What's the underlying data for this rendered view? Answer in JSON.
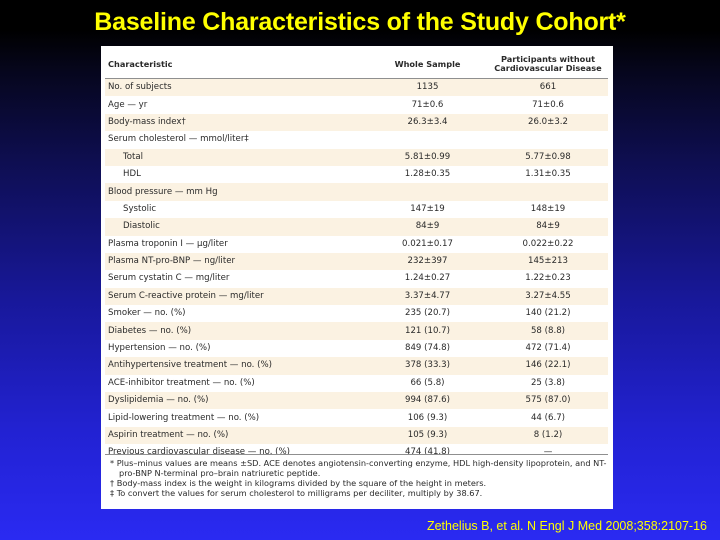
{
  "slide": {
    "title": "Baseline Characteristics of the Study Cohort*",
    "citation": "Zethelius B, et al. N Engl J Med 2008;358:2107-16"
  },
  "table": {
    "headers": [
      "Characteristic",
      "Whole Sample",
      "Participants without Cardiovascular Disease"
    ],
    "rows": [
      {
        "label": "No. of subjects",
        "whole": "1135",
        "without_cvd": "661",
        "indent": false
      },
      {
        "label": "Age — yr",
        "whole": "71±0.6",
        "without_cvd": "71±0.6",
        "indent": false
      },
      {
        "label": "Body-mass index†",
        "whole": "26.3±3.4",
        "without_cvd": "26.0±3.2",
        "indent": false
      },
      {
        "label": "Serum cholesterol — mmol/liter‡",
        "whole": "",
        "without_cvd": "",
        "indent": false
      },
      {
        "label": "Total",
        "whole": "5.81±0.99",
        "without_cvd": "5.77±0.98",
        "indent": true
      },
      {
        "label": "HDL",
        "whole": "1.28±0.35",
        "without_cvd": "1.31±0.35",
        "indent": true
      },
      {
        "label": "Blood pressure — mm Hg",
        "whole": "",
        "without_cvd": "",
        "indent": false
      },
      {
        "label": "Systolic",
        "whole": "147±19",
        "without_cvd": "148±19",
        "indent": true
      },
      {
        "label": "Diastolic",
        "whole": "84±9",
        "without_cvd": "84±9",
        "indent": true
      },
      {
        "label": "Plasma troponin I — µg/liter",
        "whole": "0.021±0.17",
        "without_cvd": "0.022±0.22",
        "indent": false
      },
      {
        "label": "Plasma NT-pro-BNP — ng/liter",
        "whole": "232±397",
        "without_cvd": "145±213",
        "indent": false
      },
      {
        "label": "Serum cystatin C — mg/liter",
        "whole": "1.24±0.27",
        "without_cvd": "1.22±0.23",
        "indent": false
      },
      {
        "label": "Serum C-reactive protein — mg/liter",
        "whole": "3.37±4.77",
        "without_cvd": "3.27±4.55",
        "indent": false
      },
      {
        "label": "Smoker — no. (%)",
        "whole": "235 (20.7)",
        "without_cvd": "140 (21.2)",
        "indent": false
      },
      {
        "label": "Diabetes — no. (%)",
        "whole": "121 (10.7)",
        "without_cvd": "58 (8.8)",
        "indent": false
      },
      {
        "label": "Hypertension — no. (%)",
        "whole": "849 (74.8)",
        "without_cvd": "472 (71.4)",
        "indent": false
      },
      {
        "label": "Antihypertensive treatment — no. (%)",
        "whole": "378 (33.3)",
        "without_cvd": "146 (22.1)",
        "indent": false
      },
      {
        "label": "ACE-inhibitor treatment — no. (%)",
        "whole": "66 (5.8)",
        "without_cvd": "25 (3.8)",
        "indent": false
      },
      {
        "label": "Dyslipidemia — no. (%)",
        "whole": "994 (87.6)",
        "without_cvd": "575 (87.0)",
        "indent": false
      },
      {
        "label": "Lipid-lowering treatment — no. (%)",
        "whole": "106 (9.3)",
        "without_cvd": "44 (6.7)",
        "indent": false
      },
      {
        "label": "Aspirin treatment — no. (%)",
        "whole": "105 (9.3)",
        "without_cvd": "8 (1.2)",
        "indent": false
      },
      {
        "label": "Previous cardiovascular disease — no. (%)",
        "whole": "474 (41.8)",
        "without_cvd": "—",
        "indent": false
      }
    ]
  },
  "footnotes": [
    "* Plus–minus values are means ±SD. ACE denotes angiotensin-converting enzyme, HDL high-density lipoprotein, and NT-pro-BNP N-terminal pro–brain natriuretic peptide.",
    "† Body-mass index is the weight in kilograms divided by the square of the height in meters.",
    "‡ To convert the values for serum cholesterol to milligrams per deciliter, multiply by 38.67."
  ]
}
